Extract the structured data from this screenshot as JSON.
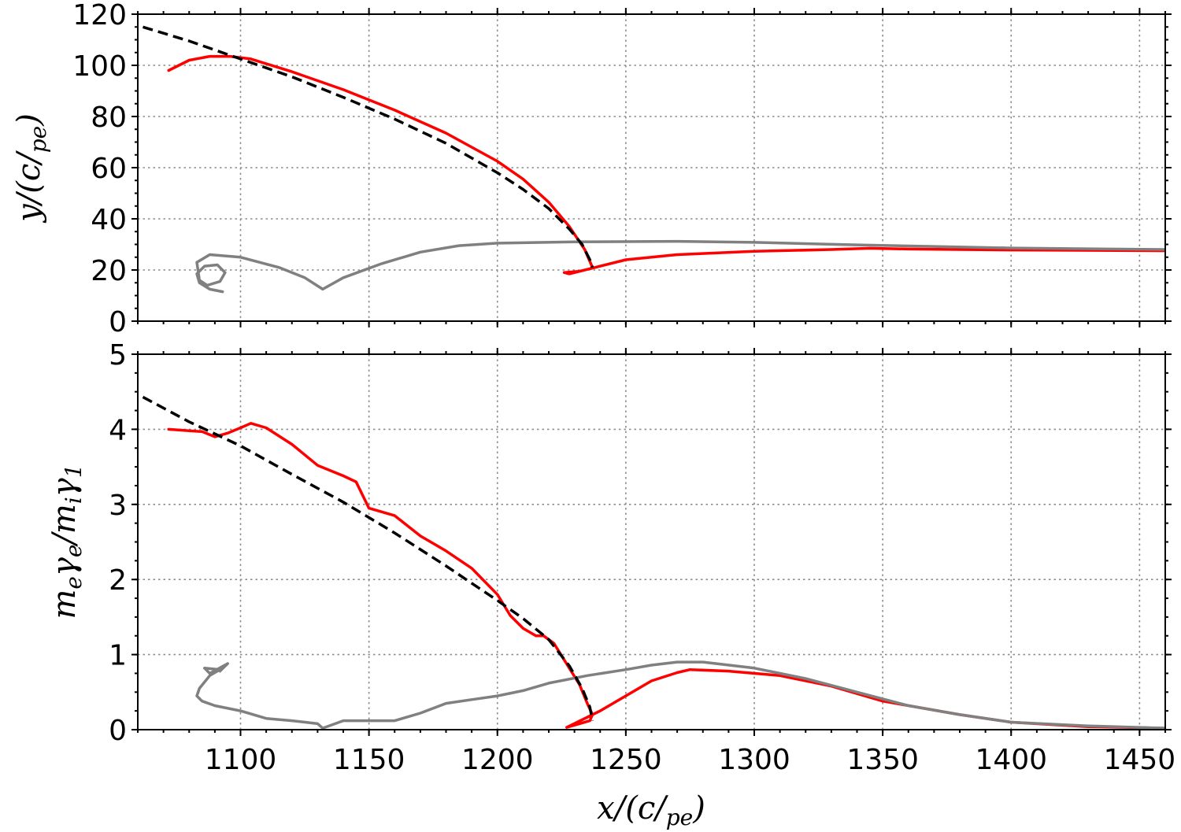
{
  "colors": {
    "red": "#ff0000",
    "gray": "#808080",
    "fit": "#000000",
    "grid": "#8c8c8c"
  },
  "chart_data": [
    {
      "type": "line",
      "panel": "top",
      "xlabel": "x/(c/ωpe)",
      "ylabel": "y/(c/ωpe)",
      "xlim": [
        1060,
        1460
      ],
      "ylim": [
        0,
        120
      ],
      "grid": true,
      "xticks": [
        1100,
        1150,
        1200,
        1250,
        1300,
        1350,
        1400,
        1450
      ],
      "yticks": [
        0,
        20,
        40,
        60,
        80,
        100,
        120
      ],
      "series": [
        {
          "color": "#ff0000",
          "style": "solid",
          "x": [
            1072,
            1080,
            1088,
            1096,
            1104,
            1120,
            1140,
            1160,
            1180,
            1200,
            1210,
            1220,
            1228,
            1234,
            1237,
            1236,
            1232,
            1226,
            1228,
            1236,
            1250,
            1270,
            1300,
            1330,
            1345,
            1360,
            1400,
            1460
          ],
          "y": [
            98,
            102,
            103.5,
            103.5,
            102.5,
            97.5,
            90.5,
            82.5,
            73.5,
            62.5,
            55.5,
            46.5,
            37,
            28,
            21,
            20.5,
            19.5,
            19,
            18.5,
            20.5,
            24,
            26,
            27.3,
            28,
            28.5,
            28.2,
            27.8,
            27.5
          ]
        },
        {
          "color": "#808080",
          "style": "solid",
          "x": [
            1093,
            1088,
            1084,
            1083,
            1086,
            1091,
            1094,
            1092,
            1087,
            1084,
            1083,
            1088,
            1100,
            1115,
            1125,
            1132,
            1140,
            1155,
            1170,
            1185,
            1200,
            1230,
            1270,
            1300,
            1340,
            1370,
            1400,
            1460
          ],
          "y": [
            11.5,
            12.5,
            15,
            18.5,
            21.5,
            22,
            19,
            15.5,
            14,
            16,
            23,
            26,
            25,
            21,
            17,
            12.5,
            17,
            22.5,
            27,
            29.5,
            30.5,
            31,
            31.2,
            30.8,
            29.8,
            29.2,
            28.6,
            28
          ]
        },
        {
          "color": "#000000",
          "style": "dashed",
          "x": [
            1062,
            1080,
            1100,
            1120,
            1140,
            1160,
            1180,
            1200,
            1210,
            1220,
            1228,
            1233,
            1236,
            1237
          ],
          "y": [
            115,
            109.5,
            102.5,
            95.5,
            87.5,
            79,
            69.5,
            58,
            51.5,
            44,
            36,
            30,
            24,
            21
          ]
        }
      ]
    },
    {
      "type": "line",
      "panel": "bottom",
      "xlabel": "x/(c/ωpe)",
      "ylabel": "meγe/miγ1",
      "xlim": [
        1060,
        1460
      ],
      "ylim": [
        0,
        5
      ],
      "grid": true,
      "xticks": [
        1100,
        1150,
        1200,
        1250,
        1300,
        1350,
        1400,
        1450
      ],
      "yticks": [
        0,
        1,
        2,
        3,
        4,
        5
      ],
      "series": [
        {
          "color": "#ff0000",
          "style": "solid",
          "x": [
            1072,
            1080,
            1085,
            1090,
            1095,
            1100,
            1104,
            1110,
            1120,
            1130,
            1140,
            1145,
            1150,
            1160,
            1170,
            1180,
            1190,
            1200,
            1205,
            1210,
            1215,
            1218,
            1222,
            1228,
            1232,
            1235,
            1237,
            1236,
            1232,
            1227,
            1240,
            1260,
            1270,
            1275,
            1290,
            1310,
            1330,
            1350,
            1380,
            1400,
            1430,
            1460
          ],
          "y": [
            4.0,
            3.98,
            3.97,
            3.9,
            3.95,
            4.02,
            4.08,
            4.02,
            3.8,
            3.52,
            3.38,
            3.3,
            2.95,
            2.85,
            2.58,
            2.38,
            2.15,
            1.8,
            1.52,
            1.35,
            1.25,
            1.25,
            1.15,
            0.82,
            0.6,
            0.35,
            0.2,
            0.12,
            0.08,
            0.03,
            0.25,
            0.65,
            0.76,
            0.8,
            0.78,
            0.72,
            0.58,
            0.38,
            0.2,
            0.1,
            0.04,
            0.02
          ]
        },
        {
          "color": "#808080",
          "style": "solid",
          "x": [
            1092,
            1095,
            1088,
            1086,
            1092,
            1088,
            1084,
            1083,
            1085,
            1090,
            1100,
            1110,
            1120,
            1130,
            1132,
            1140,
            1150,
            1160,
            1170,
            1180,
            1190,
            1200,
            1210,
            1220,
            1235,
            1250,
            1260,
            1270,
            1280,
            1300,
            1320,
            1340,
            1360,
            1380,
            1400,
            1430,
            1460
          ],
          "y": [
            0.78,
            0.88,
            0.75,
            0.82,
            0.8,
            0.72,
            0.55,
            0.45,
            0.38,
            0.32,
            0.25,
            0.15,
            0.12,
            0.08,
            0.02,
            0.12,
            0.12,
            0.12,
            0.22,
            0.35,
            0.4,
            0.45,
            0.52,
            0.62,
            0.72,
            0.8,
            0.86,
            0.9,
            0.9,
            0.82,
            0.68,
            0.5,
            0.32,
            0.2,
            0.1,
            0.05,
            0.02
          ]
        },
        {
          "color": "#000000",
          "style": "dashed",
          "x": [
            1062,
            1080,
            1100,
            1120,
            1140,
            1160,
            1180,
            1200,
            1210,
            1220,
            1228,
            1233,
            1236,
            1237
          ],
          "y": [
            4.43,
            4.1,
            3.78,
            3.4,
            3.03,
            2.62,
            2.18,
            1.72,
            1.48,
            1.2,
            0.85,
            0.55,
            0.3,
            0.12
          ]
        }
      ]
    }
  ]
}
